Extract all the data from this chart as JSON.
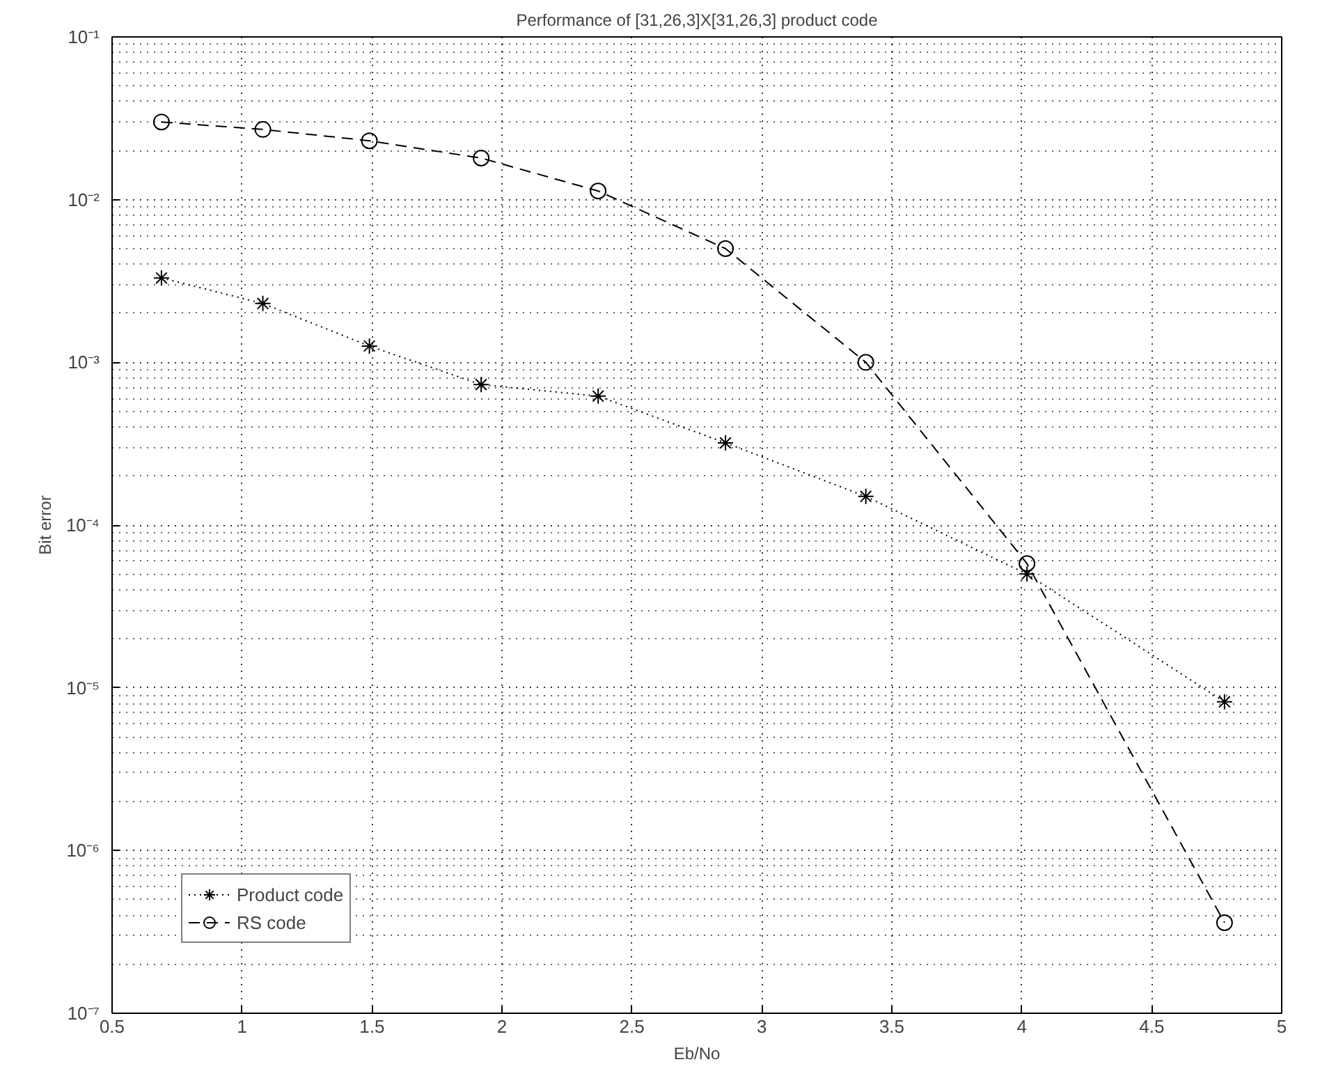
{
  "chart_data": {
    "type": "line",
    "title": "Performance of [31,26,3]X[31,26,3] product code",
    "xlabel": "Eb/No",
    "ylabel": "Bit error",
    "x": [
      0.69,
      1.08,
      1.49,
      1.92,
      2.37,
      2.86,
      3.4,
      4.02,
      4.78
    ],
    "series": [
      {
        "name": "Product code",
        "color": "#000000",
        "marker": "cross",
        "line_style": "dotted",
        "values": [
          0.0033,
          0.0023,
          0.00126,
          0.00073,
          0.00062,
          0.00032,
          0.00015,
          5e-05,
          8.2e-06
        ]
      },
      {
        "name": "RS code",
        "color": "#000000",
        "marker": "circle",
        "line_style": "dashed",
        "values": [
          0.03,
          0.027,
          0.023,
          0.018,
          0.0113,
          0.005,
          0.001,
          5.8e-05,
          3.6e-07
        ]
      }
    ],
    "log": "y",
    "xlim": [
      0.5,
      5
    ],
    "xticks": [
      0.5,
      1,
      1.5,
      2,
      2.5,
      3,
      3.5,
      4,
      4.5,
      5
    ],
    "ylim": [
      1e-07,
      0.1
    ],
    "yticks": [
      {
        "value": 1e-07,
        "label": "10⁻⁷"
      },
      {
        "value": 1e-06,
        "label": "10⁻⁶"
      },
      {
        "value": 1e-05,
        "label": "10⁻⁵"
      },
      {
        "value": 0.0001,
        "label": "10⁻⁴"
      },
      {
        "value": 0.001,
        "label": "10⁻³"
      },
      {
        "value": 0.01,
        "label": "10⁻²"
      },
      {
        "value": 0.1,
        "label": "10⁻¹"
      }
    ],
    "grid": true,
    "legend": "bottom left"
  }
}
